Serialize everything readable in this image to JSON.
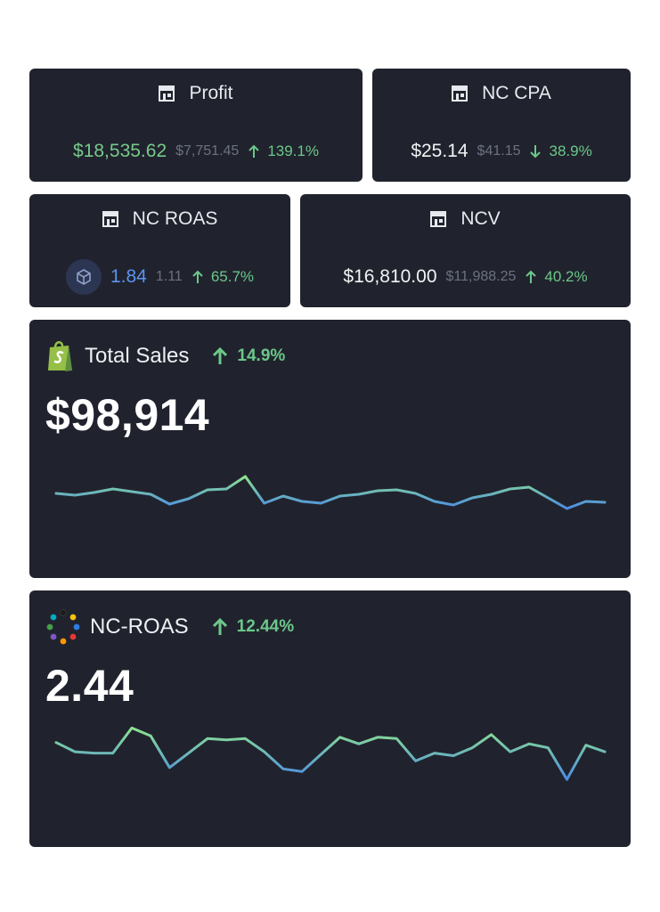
{
  "kpis": {
    "profit": {
      "label": "Profit",
      "value": "$18,535.62",
      "previous": "$7,751.45",
      "delta": "139.1%",
      "direction": "up"
    },
    "nc_cpa": {
      "label": "NC CPA",
      "value": "$25.14",
      "previous": "$41.15",
      "delta": "38.9%",
      "direction": "down"
    },
    "nc_roas": {
      "label": "NC ROAS",
      "value": "1.84",
      "previous": "1.11",
      "delta": "65.7%",
      "direction": "up"
    },
    "ncv": {
      "label": "NCV",
      "value": "$16,810.00",
      "previous": "$11,988.25",
      "delta": "40.2%",
      "direction": "up"
    }
  },
  "icons": {
    "kpi_icon": "store-icon",
    "total_sales_icon": "shopify-bag-icon",
    "nc_roas_icon": "color-dots-icon",
    "nc_roas_badge": "cube-icon",
    "up": "arrow-up-icon",
    "down": "arrow-down-icon"
  },
  "colors": {
    "card_bg": "#20232d",
    "positive": "#6cc88a",
    "value_green": "#78c98c",
    "value_blue": "#5b93f0",
    "line_gradient_top": "#8de38f",
    "line_gradient_bottom": "#4c8ce4"
  },
  "total_sales": {
    "label": "Total Sales",
    "value": "$98,914",
    "delta": "14.9%",
    "trend": [
      0.62,
      0.58,
      0.64,
      0.72,
      0.66,
      0.6,
      0.38,
      0.5,
      0.7,
      0.72,
      1.0,
      0.4,
      0.56,
      0.44,
      0.4,
      0.56,
      0.6,
      0.68,
      0.7,
      0.62,
      0.44,
      0.36,
      0.52,
      0.6,
      0.72,
      0.76,
      0.52,
      0.28,
      0.44,
      0.42
    ]
  },
  "nc_roas_chart": {
    "label": "NC-ROAS",
    "value": "2.44",
    "delta": "12.44%",
    "trend": [
      0.72,
      0.58,
      0.56,
      0.56,
      0.94,
      0.82,
      0.34,
      0.56,
      0.78,
      0.76,
      0.78,
      0.58,
      0.32,
      0.28,
      0.54,
      0.8,
      0.7,
      0.8,
      0.78,
      0.44,
      0.56,
      0.52,
      0.64,
      0.84,
      0.58,
      0.7,
      0.64,
      0.16,
      0.68,
      0.58
    ]
  }
}
